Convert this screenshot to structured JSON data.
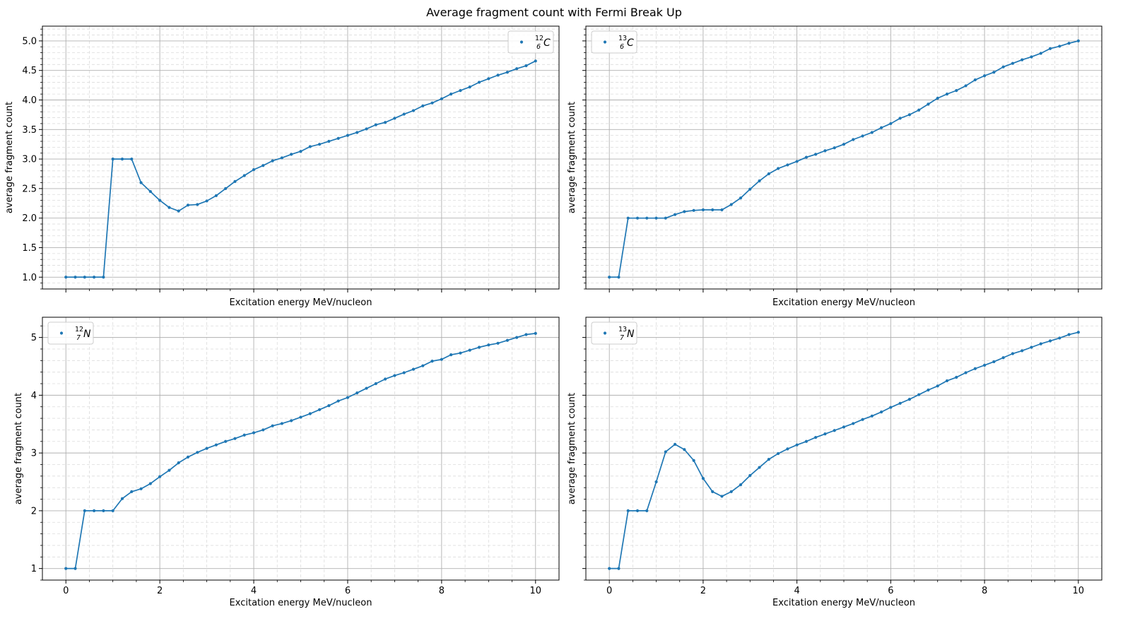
{
  "figure": {
    "suptitle": "Average fragment count with Fermi Break Up"
  },
  "style": {
    "line_color": "#1f77b4",
    "major_grid_color": "#b0b0b0",
    "minor_grid_color": "#dcdcdc"
  },
  "chart_data": [
    {
      "type": "line",
      "panel": "top-left",
      "legend": {
        "A": "12",
        "Z": "6",
        "symbol": "C",
        "location": "upper right"
      },
      "xlabel": "Excitation energy MeV/nucleon",
      "ylabel": "average fragment count",
      "xlim": [
        -0.5,
        10.5
      ],
      "ylim": [
        0.8,
        5.25
      ],
      "xticks": [],
      "yticks": [
        1.0,
        1.5,
        2.0,
        2.5,
        3.0,
        3.5,
        4.0,
        4.5,
        5.0
      ],
      "ytick_labels": [
        "1.0",
        "1.5",
        "2.0",
        "2.5",
        "3.0",
        "3.5",
        "4.0",
        "4.5",
        "5.0"
      ],
      "grid": true,
      "minor_grid": true,
      "x": [
        0,
        0.2,
        0.4,
        0.6,
        0.8,
        1.0,
        1.2,
        1.4,
        1.6,
        1.8,
        2.0,
        2.2,
        2.4,
        2.6,
        2.8,
        3.0,
        3.2,
        3.4,
        3.6,
        3.8,
        4.0,
        4.2,
        4.4,
        4.6,
        4.8,
        5.0,
        5.2,
        5.4,
        5.6,
        5.8,
        6.0,
        6.2,
        6.4,
        6.6,
        6.8,
        7.0,
        7.2,
        7.4,
        7.6,
        7.8,
        8.0,
        8.2,
        8.4,
        8.6,
        8.8,
        9.0,
        9.2,
        9.4,
        9.6,
        9.8,
        10.0
      ],
      "values": [
        1.0,
        1.0,
        1.0,
        1.0,
        1.0,
        3.0,
        3.0,
        3.0,
        2.6,
        2.45,
        2.3,
        2.18,
        2.12,
        2.22,
        2.23,
        2.29,
        2.38,
        2.5,
        2.62,
        2.72,
        2.82,
        2.89,
        2.97,
        3.02,
        3.08,
        3.13,
        3.21,
        3.25,
        3.3,
        3.35,
        3.4,
        3.45,
        3.51,
        3.58,
        3.62,
        3.69,
        3.76,
        3.82,
        3.9,
        3.95,
        4.02,
        4.1,
        4.16,
        4.22,
        4.3,
        4.36,
        4.42,
        4.47,
        4.53,
        4.58,
        4.66
      ]
    },
    {
      "type": "line",
      "panel": "top-right",
      "legend": {
        "A": "13",
        "Z": "6",
        "symbol": "C",
        "location": "upper left"
      },
      "xlabel": "Excitation energy MeV/nucleon",
      "ylabel": "average fragment count",
      "xlim": [
        -0.5,
        10.5
      ],
      "ylim": [
        0.8,
        5.25
      ],
      "xticks": [],
      "yticks": [],
      "grid": true,
      "minor_grid": true,
      "x": [
        0,
        0.2,
        0.4,
        0.6,
        0.8,
        1.0,
        1.2,
        1.4,
        1.6,
        1.8,
        2.0,
        2.2,
        2.4,
        2.6,
        2.8,
        3.0,
        3.2,
        3.4,
        3.6,
        3.8,
        4.0,
        4.2,
        4.4,
        4.6,
        4.8,
        5.0,
        5.2,
        5.4,
        5.6,
        5.8,
        6.0,
        6.2,
        6.4,
        6.6,
        6.8,
        7.0,
        7.2,
        7.4,
        7.6,
        7.8,
        8.0,
        8.2,
        8.4,
        8.6,
        8.8,
        9.0,
        9.2,
        9.4,
        9.6,
        9.8,
        10.0
      ],
      "values": [
        1.0,
        1.0,
        2.0,
        2.0,
        2.0,
        2.0,
        2.0,
        2.06,
        2.11,
        2.13,
        2.14,
        2.14,
        2.14,
        2.23,
        2.34,
        2.49,
        2.63,
        2.75,
        2.84,
        2.9,
        2.96,
        3.03,
        3.08,
        3.14,
        3.19,
        3.25,
        3.33,
        3.39,
        3.45,
        3.53,
        3.6,
        3.69,
        3.75,
        3.83,
        3.93,
        4.03,
        4.1,
        4.16,
        4.24,
        4.34,
        4.41,
        4.47,
        4.56,
        4.62,
        4.68,
        4.73,
        4.79,
        4.87,
        4.91,
        4.96,
        5.0
      ]
    },
    {
      "type": "line",
      "panel": "bottom-left",
      "legend": {
        "A": "12",
        "Z": "7",
        "symbol": "N",
        "location": "upper left"
      },
      "xlabel": "Excitation energy MeV/nucleon",
      "ylabel": "average fragment count",
      "xlim": [
        -0.5,
        10.5
      ],
      "ylim": [
        0.8,
        5.35
      ],
      "xticks": [
        0,
        2,
        4,
        6,
        8,
        10
      ],
      "xtick_labels": [
        "0",
        "2",
        "4",
        "6",
        "8",
        "10"
      ],
      "yticks": [
        1,
        2,
        3,
        4,
        5
      ],
      "ytick_labels": [
        "1",
        "2",
        "3",
        "4",
        "5"
      ],
      "grid": true,
      "minor_grid": true,
      "x": [
        0,
        0.2,
        0.4,
        0.6,
        0.8,
        1.0,
        1.2,
        1.4,
        1.6,
        1.8,
        2.0,
        2.2,
        2.4,
        2.6,
        2.8,
        3.0,
        3.2,
        3.4,
        3.6,
        3.8,
        4.0,
        4.2,
        4.4,
        4.6,
        4.8,
        5.0,
        5.2,
        5.4,
        5.6,
        5.8,
        6.0,
        6.2,
        6.4,
        6.6,
        6.8,
        7.0,
        7.2,
        7.4,
        7.6,
        7.8,
        8.0,
        8.2,
        8.4,
        8.6,
        8.8,
        9.0,
        9.2,
        9.4,
        9.6,
        9.8,
        10.0
      ],
      "values": [
        1.0,
        1.0,
        2.0,
        2.0,
        2.0,
        2.0,
        2.21,
        2.33,
        2.38,
        2.47,
        2.59,
        2.7,
        2.83,
        2.93,
        3.01,
        3.08,
        3.14,
        3.2,
        3.25,
        3.31,
        3.35,
        3.4,
        3.47,
        3.51,
        3.56,
        3.62,
        3.68,
        3.75,
        3.82,
        3.9,
        3.96,
        4.04,
        4.12,
        4.2,
        4.28,
        4.34,
        4.39,
        4.45,
        4.51,
        4.59,
        4.62,
        4.7,
        4.73,
        4.78,
        4.83,
        4.87,
        4.9,
        4.95,
        5.0,
        5.05,
        5.07
      ]
    },
    {
      "type": "line",
      "panel": "bottom-right",
      "legend": {
        "A": "13",
        "Z": "7",
        "symbol": "N",
        "location": "upper left"
      },
      "xlabel": "Excitation energy MeV/nucleon",
      "ylabel": "average fragment count",
      "xlim": [
        -0.5,
        10.5
      ],
      "ylim": [
        0.8,
        5.35
      ],
      "xticks": [
        0,
        2,
        4,
        6,
        8,
        10
      ],
      "xtick_labels": [
        "0",
        "2",
        "4",
        "6",
        "8",
        "10"
      ],
      "yticks": [],
      "grid": true,
      "minor_grid": true,
      "x": [
        0,
        0.2,
        0.4,
        0.6,
        0.8,
        1.0,
        1.2,
        1.4,
        1.6,
        1.8,
        2.0,
        2.2,
        2.4,
        2.6,
        2.8,
        3.0,
        3.2,
        3.4,
        3.6,
        3.8,
        4.0,
        4.2,
        4.4,
        4.6,
        4.8,
        5.0,
        5.2,
        5.4,
        5.6,
        5.8,
        6.0,
        6.2,
        6.4,
        6.6,
        6.8,
        7.0,
        7.2,
        7.4,
        7.6,
        7.8,
        8.0,
        8.2,
        8.4,
        8.6,
        8.8,
        9.0,
        9.2,
        9.4,
        9.6,
        9.8,
        10.0
      ],
      "values": [
        1.0,
        1.0,
        2.0,
        2.0,
        2.0,
        2.5,
        3.02,
        3.15,
        3.06,
        2.87,
        2.56,
        2.33,
        2.25,
        2.33,
        2.45,
        2.61,
        2.75,
        2.89,
        2.99,
        3.07,
        3.14,
        3.2,
        3.27,
        3.33,
        3.39,
        3.45,
        3.51,
        3.58,
        3.64,
        3.71,
        3.79,
        3.86,
        3.93,
        4.01,
        4.09,
        4.16,
        4.25,
        4.31,
        4.39,
        4.46,
        4.52,
        4.58,
        4.65,
        4.72,
        4.77,
        4.83,
        4.89,
        4.94,
        4.99,
        5.05,
        5.09
      ]
    }
  ]
}
